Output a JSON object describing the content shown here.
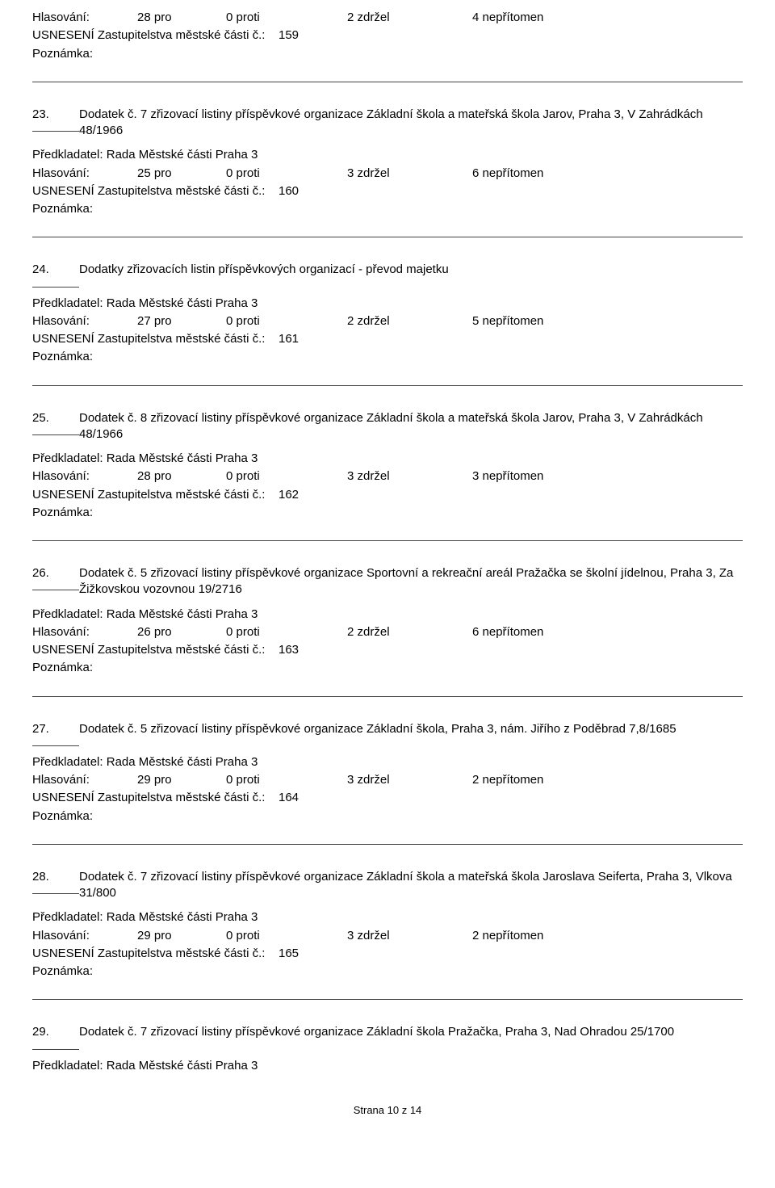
{
  "labels": {
    "vote": "Hlasování:",
    "pro_suffix": " pro",
    "proti_suffix": " proti",
    "zdrzel_suffix": " zdržel",
    "nepr_suffix": " nepřítomen",
    "resolution": "USNESENÍ Zastupitelstva městské části č.:",
    "note": "Poznámka:",
    "presenter_prefix": "Předkladatel: ",
    "presenter_value": "Rada Městské části Praha 3"
  },
  "top": {
    "pro": "28",
    "proti": "0",
    "zdrzel": "2",
    "nepr": "4",
    "res_num": "159"
  },
  "items": [
    {
      "num": "23.",
      "title": "Dodatek č. 7 zřizovací listiny příspěvkové organizace Základní škola a mateřská škola Jarov, Praha 3, V Zahrádkách 48/1966",
      "pro": "25",
      "proti": "0",
      "zdrzel": "3",
      "nepr": "6",
      "res_num": "160"
    },
    {
      "num": "24.",
      "title": "Dodatky zřizovacích listin příspěvkových organizací - převod majetku",
      "pro": "27",
      "proti": "0",
      "zdrzel": "2",
      "nepr": "5",
      "res_num": "161"
    },
    {
      "num": "25.",
      "title": "Dodatek č. 8 zřizovací listiny příspěvkové organizace Základní škola a mateřská škola Jarov, Praha 3, V Zahrádkách 48/1966",
      "pro": "28",
      "proti": "0",
      "zdrzel": "3",
      "nepr": "3",
      "res_num": "162"
    },
    {
      "num": "26.",
      "title": "Dodatek č. 5 zřizovací listiny příspěvkové organizace Sportovní a rekreační areál Pražačka se školní jídelnou, Praha 3, Za Žižkovskou vozovnou 19/2716",
      "pro": "26",
      "proti": "0",
      "zdrzel": "2",
      "nepr": "6",
      "res_num": "163"
    },
    {
      "num": "27.",
      "title": "Dodatek č. 5 zřizovací listiny příspěvkové organizace Základní škola, Praha 3, nám. Jiřího z Poděbrad 7,8/1685",
      "pro": "29",
      "proti": "0",
      "zdrzel": "3",
      "nepr": "2",
      "res_num": "164"
    },
    {
      "num": "28.",
      "title": "Dodatek č. 7 zřizovací listiny příspěvkové organizace Základní škola a mateřská škola Jaroslava Seiferta, Praha 3, Vlkova 31/800",
      "pro": "29",
      "proti": "0",
      "zdrzel": "3",
      "nepr": "2",
      "res_num": "165"
    }
  ],
  "bottom": {
    "num": "29.",
    "title": "Dodatek č. 7 zřizovací listiny příspěvkové organizace Základní škola Pražačka, Praha 3, Nad Ohradou 25/1700"
  },
  "footer": "Strana 10 z 14"
}
